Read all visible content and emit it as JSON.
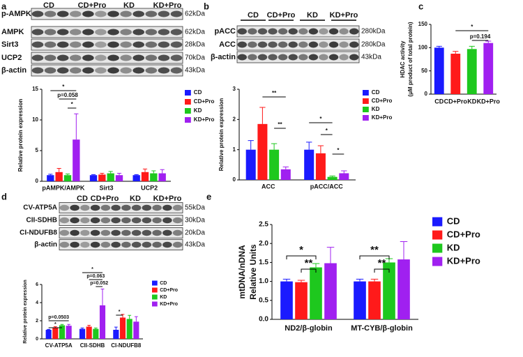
{
  "panel_labels": [
    "a",
    "b",
    "c",
    "d",
    "e"
  ],
  "blots": [
    {
      "groups": [
        "CD",
        "CD+Pro",
        "KD",
        "KD+Pro"
      ],
      "rows": [
        {
          "label": "p-AMPK",
          "size": "62kDa"
        },
        {
          "label": "AMPK",
          "size": "62kDa"
        },
        {
          "label": "Sirt3",
          "size": "28kDa"
        },
        {
          "label": "UCP2",
          "size": "70kDa"
        },
        {
          "label": "β-actin",
          "size": "43kDa"
        }
      ]
    },
    {
      "groups": [
        "CD",
        "CD+Pro",
        "KD",
        "KD+Pro"
      ],
      "rows": [
        {
          "label": "pACC",
          "size": "280kDa"
        },
        {
          "label": "ACC",
          "size": "280kDa"
        },
        {
          "label": "β-actin",
          "size": "43kDa"
        }
      ]
    },
    {
      "groups": [
        "CD",
        "CD+Pro",
        "KD",
        "KD+Pro"
      ],
      "rows": [
        {
          "label": "CV-ATP5A",
          "size": "55kDa"
        },
        {
          "label": "CII-SDHB",
          "size": "30kDa"
        },
        {
          "label": "CI-NDUFB8",
          "size": "20kDa"
        },
        {
          "label": "β-actin",
          "size": "43kDa"
        }
      ]
    }
  ],
  "chart_data": [
    {
      "type": "bar",
      "ylabel": [
        "Relative protein expression"
      ],
      "categories": [
        "pAMPK/AMPK",
        "Sirt3",
        "UCP2"
      ],
      "series": [
        {
          "name": "CD",
          "color": "#1a1aff",
          "values": [
            1.0,
            1.0,
            1.0
          ],
          "errors": [
            0.15,
            0.1,
            0.1
          ]
        },
        {
          "name": "CD+Pro",
          "color": "#ff1a1a",
          "values": [
            1.5,
            1.1,
            1.5
          ],
          "errors": [
            0.6,
            0.2,
            0.5
          ]
        },
        {
          "name": "KD",
          "color": "#1ec81e",
          "values": [
            1.0,
            1.3,
            1.3
          ],
          "errors": [
            0.2,
            0.3,
            0.4
          ]
        },
        {
          "name": "KD+Pro",
          "color": "#a020f0",
          "values": [
            6.8,
            1.0,
            1.3
          ],
          "errors": [
            4.2,
            0.3,
            0.6
          ]
        }
      ],
      "ylim": [
        0,
        15
      ],
      "yticks": [
        0,
        5,
        10,
        15
      ],
      "annotations": [
        "*",
        "p=0.058",
        "*"
      ]
    },
    {
      "type": "bar",
      "ylabel": [
        "Relative protein expression"
      ],
      "categories": [
        "ACC",
        "pACC/ACC"
      ],
      "series": [
        {
          "name": "CD",
          "color": "#1a1aff",
          "values": [
            1.0,
            1.0
          ],
          "errors": [
            0.3,
            0.25
          ]
        },
        {
          "name": "CD+Pro",
          "color": "#ff1a1a",
          "values": [
            1.85,
            0.88
          ],
          "errors": [
            0.55,
            0.25
          ]
        },
        {
          "name": "KD",
          "color": "#1ec81e",
          "values": [
            1.0,
            0.1
          ],
          "errors": [
            0.2,
            0.03
          ]
        },
        {
          "name": "KD+Pro",
          "color": "#a020f0",
          "values": [
            0.35,
            0.22
          ],
          "errors": [
            0.08,
            0.08
          ]
        }
      ],
      "ylim": [
        0,
        3
      ],
      "yticks": [
        0,
        1,
        2,
        3
      ],
      "annotations": [
        "**",
        "**",
        "*",
        "*",
        "*"
      ]
    },
    {
      "type": "bar",
      "ylabel": [
        "HDAC activity",
        "(μM product of total protein)"
      ],
      "categories": [
        "CD",
        "CD+Pro",
        "KD",
        "KD+Pro"
      ],
      "values": [
        100,
        87,
        97,
        110
      ],
      "errors": [
        3,
        5,
        6,
        4
      ],
      "colors": [
        "#1a1aff",
        "#ff1a1a",
        "#1ec81e",
        "#a020f0"
      ],
      "ylim": [
        0,
        150
      ],
      "yticks": [
        0,
        50,
        100,
        150
      ],
      "annotations": [
        "*",
        "p=0.194"
      ]
    },
    {
      "type": "bar",
      "ylabel": [
        "Relative protein expression"
      ],
      "categories": [
        "CV-ATP5A",
        "CII-SDHB",
        "CI-NDUFB8"
      ],
      "series": [
        {
          "name": "CD",
          "color": "#1a1aff",
          "values": [
            1.0,
            1.1,
            1.0
          ],
          "errors": [
            0.05,
            0.1,
            0.3
          ]
        },
        {
          "name": "CD+Pro",
          "color": "#ff1a1a",
          "values": [
            1.2,
            1.35,
            2.35
          ],
          "errors": [
            0.15,
            0.15,
            0.35
          ]
        },
        {
          "name": "KD",
          "color": "#1ec81e",
          "values": [
            1.5,
            1.1,
            2.2
          ],
          "errors": [
            0.1,
            0.1,
            0.4
          ]
        },
        {
          "name": "KD+Pro",
          "color": "#a020f0",
          "values": [
            1.45,
            3.7,
            1.9
          ],
          "errors": [
            0.15,
            1.8,
            0.55
          ]
        }
      ],
      "ylim": [
        0,
        6
      ],
      "yticks": [
        0,
        2,
        4,
        6
      ],
      "annotations": [
        "p=0.0503",
        "*",
        "*",
        "p=0.063",
        "p=0.052",
        "*"
      ]
    },
    {
      "type": "bar",
      "ylabel": [
        "mtDNA/nDNA",
        "Relative Units"
      ],
      "categories": [
        "ND2/β-globin",
        "MT-CYB/β-globin"
      ],
      "series": [
        {
          "name": "CD",
          "color": "#1a1aff",
          "values": [
            1.0,
            1.0
          ],
          "errors": [
            0.06,
            0.06
          ]
        },
        {
          "name": "CD+Pro",
          "color": "#ff1a1a",
          "values": [
            0.98,
            1.0
          ],
          "errors": [
            0.05,
            0.06
          ]
        },
        {
          "name": "KD",
          "color": "#1ec81e",
          "values": [
            1.37,
            1.5
          ],
          "errors": [
            0.1,
            0.1
          ]
        },
        {
          "name": "KD+Pro",
          "color": "#a020f0",
          "values": [
            1.48,
            1.58
          ],
          "errors": [
            0.42,
            0.47
          ]
        }
      ],
      "ylim": [
        0,
        2.5
      ],
      "yticks": [
        {
          "value": 0,
          "label": "0.0"
        },
        0.5,
        {
          "value": 1,
          "label": "1.0"
        },
        1.5,
        {
          "value": 2,
          "label": "2.0"
        },
        2.5
      ],
      "annotations": [
        "*",
        "**",
        "**",
        "**"
      ]
    }
  ]
}
